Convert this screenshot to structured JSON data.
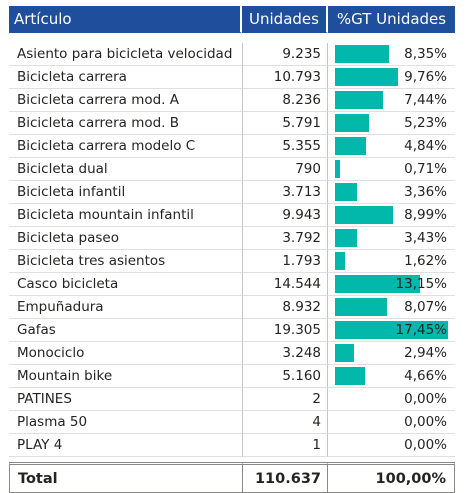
{
  "header": {
    "col_name": "Artículo",
    "col_units": "Unidades",
    "col_pct": "%GT Unidades"
  },
  "colors": {
    "header_bg": "#1f4e9d",
    "bar": "#01b8aa"
  },
  "rows": [
    {
      "name": "Asiento para bicicleta velocidad",
      "units": "9.235",
      "pct": "8,35%",
      "pct_value": 8.35
    },
    {
      "name": "Bicicleta carrera",
      "units": "10.793",
      "pct": "9,76%",
      "pct_value": 9.76
    },
    {
      "name": "Bicicleta carrera mod. A",
      "units": "8.236",
      "pct": "7,44%",
      "pct_value": 7.44
    },
    {
      "name": "Bicicleta carrera mod. B",
      "units": "5.791",
      "pct": "5,23%",
      "pct_value": 5.23
    },
    {
      "name": "Bicicleta carrera modelo C",
      "units": "5.355",
      "pct": "4,84%",
      "pct_value": 4.84
    },
    {
      "name": "Bicicleta dual",
      "units": "790",
      "pct": "0,71%",
      "pct_value": 0.71
    },
    {
      "name": "Bicicleta infantil",
      "units": "3.713",
      "pct": "3,36%",
      "pct_value": 3.36
    },
    {
      "name": "Bicicleta mountain infantil",
      "units": "9.943",
      "pct": "8,99%",
      "pct_value": 8.99
    },
    {
      "name": "Bicicleta paseo",
      "units": "3.792",
      "pct": "3,43%",
      "pct_value": 3.43
    },
    {
      "name": "Bicicleta tres asientos",
      "units": "1.793",
      "pct": "1,62%",
      "pct_value": 1.62
    },
    {
      "name": "Casco bicicleta",
      "units": "14.544",
      "pct": "13,15%",
      "pct_value": 13.15
    },
    {
      "name": "Empuñadura",
      "units": "8.932",
      "pct": "8,07%",
      "pct_value": 8.07
    },
    {
      "name": "Gafas",
      "units": "19.305",
      "pct": "17,45%",
      "pct_value": 17.45
    },
    {
      "name": "Monociclo",
      "units": "3.248",
      "pct": "2,94%",
      "pct_value": 2.94
    },
    {
      "name": "Mountain bike",
      "units": "5.160",
      "pct": "4,66%",
      "pct_value": 4.66
    },
    {
      "name": "PATINES",
      "units": "2",
      "pct": "0,00%",
      "pct_value": 0.0
    },
    {
      "name": "Plasma 50",
      "units": "4",
      "pct": "0,00%",
      "pct_value": 0.0
    },
    {
      "name": "PLAY 4",
      "units": "1",
      "pct": "0,00%",
      "pct_value": 0.0
    }
  ],
  "total": {
    "label": "Total",
    "units": "110.637",
    "pct": "100,00%"
  }
}
